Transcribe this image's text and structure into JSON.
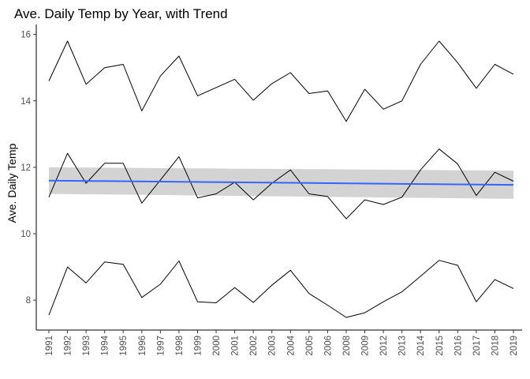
{
  "chart_data": {
    "type": "line",
    "title": "Ave. Daily Temp by Year, with Trend",
    "xlabel": "",
    "ylabel": "Ave. Daily Temp",
    "ylim": [
      7.1,
      16.3
    ],
    "yticks": [
      8,
      10,
      12,
      14,
      16
    ],
    "grid": false,
    "legend": "none",
    "categories": [
      "1991",
      "1992",
      "1993",
      "1994",
      "1995",
      "1996",
      "1997",
      "1998",
      "1999",
      "2000",
      "2001",
      "2002",
      "2003",
      "2004",
      "2005",
      "2006",
      "2008",
      "2009",
      "2012",
      "2013",
      "2014",
      "2015",
      "2016",
      "2017",
      "2018",
      "2019"
    ],
    "series": [
      {
        "role": "upper",
        "color": "#000000",
        "values": [
          14.6,
          15.8,
          14.5,
          15.0,
          15.1,
          13.7,
          14.75,
          15.35,
          14.15,
          14.4,
          14.65,
          14.02,
          14.52,
          14.85,
          14.22,
          14.3,
          13.38,
          14.35,
          13.75,
          14.0,
          15.1,
          15.8,
          15.15,
          14.38,
          15.1,
          14.8
        ]
      },
      {
        "role": "middle",
        "color": "#000000",
        "values": [
          11.1,
          12.42,
          11.52,
          12.12,
          12.12,
          10.92,
          11.62,
          12.32,
          11.08,
          11.2,
          11.55,
          11.02,
          11.52,
          11.92,
          11.2,
          11.12,
          10.45,
          11.02,
          10.88,
          11.1,
          11.92,
          12.55,
          12.1,
          11.15,
          11.85,
          11.58
        ]
      },
      {
        "role": "lower",
        "color": "#000000",
        "values": [
          7.55,
          9.0,
          8.52,
          9.15,
          9.08,
          8.08,
          8.48,
          9.18,
          7.95,
          7.92,
          8.38,
          7.93,
          8.45,
          8.9,
          8.2,
          7.85,
          7.48,
          7.62,
          7.95,
          8.25,
          8.72,
          9.2,
          9.05,
          7.95,
          8.62,
          8.35
        ]
      }
    ],
    "trend": {
      "color": "#3366FF",
      "band_color": "#D3D3D3",
      "start": 11.6,
      "end": 11.47,
      "band_start": [
        11.2,
        12.0
      ],
      "band_end": [
        11.05,
        11.9
      ]
    }
  }
}
